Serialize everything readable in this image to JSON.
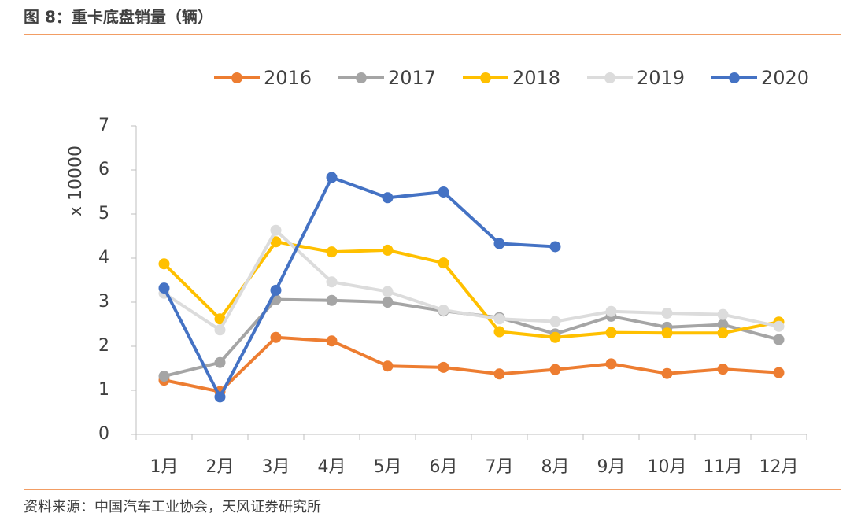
{
  "chart_data": {
    "type": "line",
    "title": "图 8：重卡底盘销量（辆）",
    "source": "资料来源：中国汽车工业协会，天风证券研究所",
    "ylabel": "x 10000",
    "categories": [
      "1月",
      "2月",
      "3月",
      "4月",
      "5月",
      "6月",
      "7月",
      "8月",
      "9月",
      "10月",
      "11月",
      "12月"
    ],
    "series": [
      {
        "name": "2016",
        "color": "#ED7D31",
        "values": [
          1.23,
          0.97,
          2.2,
          2.12,
          1.55,
          1.52,
          1.37,
          1.47,
          1.6,
          1.38,
          1.48,
          1.4
        ]
      },
      {
        "name": "2017",
        "color": "#A5A5A5",
        "values": [
          1.32,
          1.63,
          3.06,
          3.04,
          3.0,
          2.8,
          2.65,
          2.28,
          2.68,
          2.43,
          2.49,
          2.15
        ]
      },
      {
        "name": "2018",
        "color": "#FFC000",
        "values": [
          3.87,
          2.62,
          4.37,
          4.14,
          4.18,
          3.89,
          2.33,
          2.2,
          2.31,
          2.3,
          2.3,
          2.55
        ]
      },
      {
        "name": "2019",
        "color": "#DCDCDC",
        "values": [
          3.2,
          2.37,
          4.63,
          3.46,
          3.24,
          2.82,
          2.62,
          2.56,
          2.79,
          2.75,
          2.72,
          2.45
        ]
      },
      {
        "name": "2020",
        "color": "#4472C4",
        "values": [
          3.32,
          0.85,
          3.27,
          5.83,
          5.37,
          5.5,
          4.33,
          4.26,
          null,
          null,
          null,
          null
        ]
      }
    ],
    "ylim": [
      0,
      7
    ],
    "yticks": [
      0,
      1,
      2,
      3,
      4,
      5,
      6,
      7
    ],
    "legend": "top"
  }
}
